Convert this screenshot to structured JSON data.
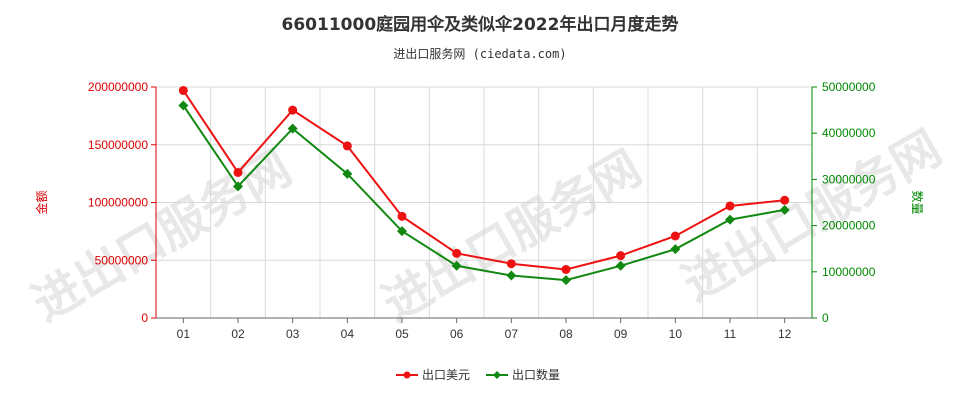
{
  "chart_data": {
    "type": "line",
    "title": "66011000庭园用伞及类似伞2022年出口月度走势",
    "subtitle": "进出口服务网 (ciedata.com)",
    "watermark": "进出口服务网",
    "categories": [
      "01",
      "02",
      "03",
      "04",
      "05",
      "06",
      "07",
      "08",
      "09",
      "10",
      "11",
      "12"
    ],
    "y_left": {
      "label": "金额",
      "min": 0,
      "max": 200000000,
      "ticks": [
        "0",
        "50000000",
        "100000000",
        "150000000",
        "200000000"
      ],
      "color": "#dd0000"
    },
    "y_right": {
      "label": "数量",
      "min": 0,
      "max": 50000000,
      "ticks": [
        "0",
        "10000000",
        "20000000",
        "30000000",
        "40000000",
        "50000000"
      ],
      "color": "#008800"
    },
    "series": [
      {
        "name": "出口美元",
        "axis": "left",
        "color": "#ee1111",
        "marker": "circle",
        "values": [
          197000000,
          126000000,
          180000000,
          149000000,
          88000000,
          56000000,
          47000000,
          42000000,
          54000000,
          71000000,
          97000000,
          102000000
        ]
      },
      {
        "name": "出口数量",
        "axis": "right",
        "color": "#118811",
        "marker": "diamond",
        "values": [
          46000000,
          28500000,
          41000000,
          31200000,
          18800000,
          11300000,
          9200000,
          8200000,
          11300000,
          14900000,
          21300000,
          23400000
        ]
      }
    ],
    "grid": true,
    "legend": "bottom-center"
  }
}
